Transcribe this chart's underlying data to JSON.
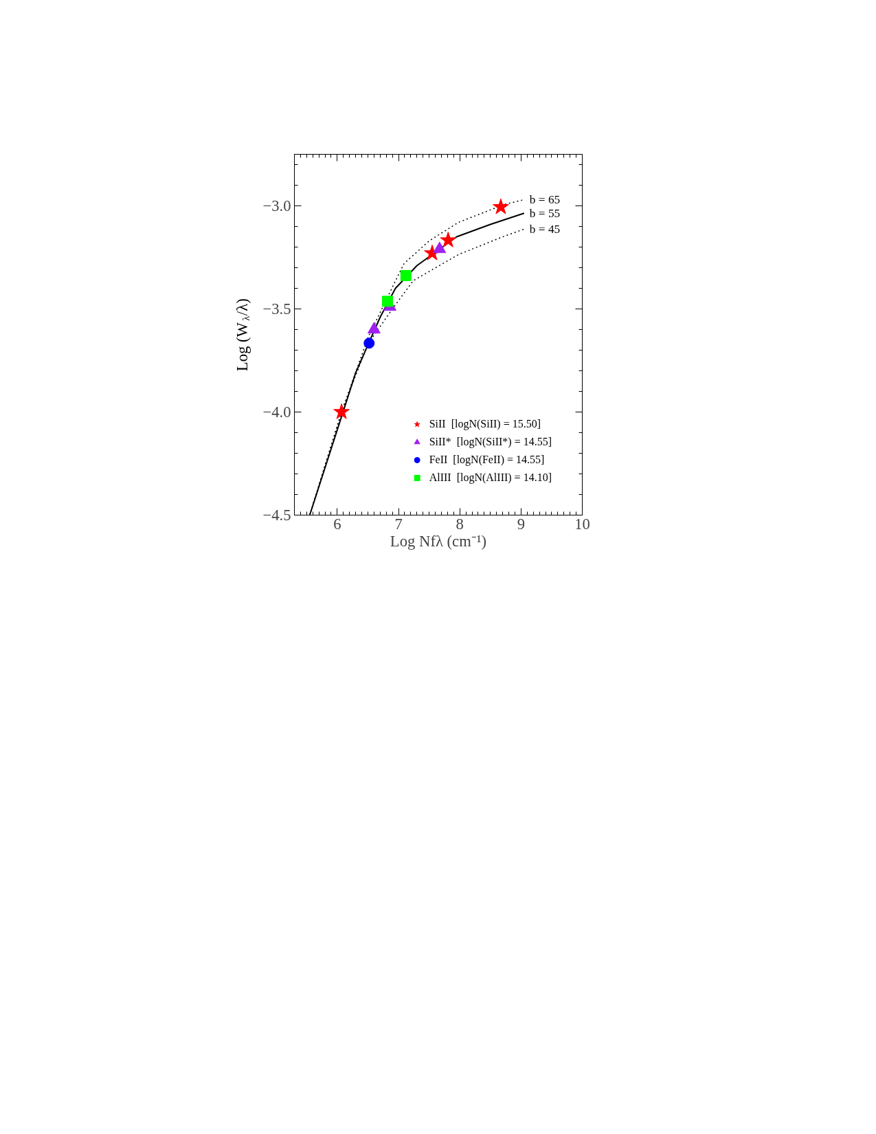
{
  "chart_data": {
    "type": "scatter",
    "xlabel": "Log Nfλ (cm⁻¹)",
    "ylabel": "Log (W$_{λ}$/λ)",
    "xlim": [
      5.3,
      10
    ],
    "ylim": [
      -4.5,
      -2.75
    ],
    "xticks": [
      6,
      7,
      8,
      9,
      10
    ],
    "yticks": [
      {
        "value": -4.5,
        "label": "−4.5"
      },
      {
        "value": -4.0,
        "label": "−4.0"
      },
      {
        "value": -3.5,
        "label": "−3.5"
      },
      {
        "value": -3.0,
        "label": "−3.0"
      }
    ],
    "grid": false,
    "legend": "bottom right",
    "series": [
      {
        "name": "b = 65",
        "type": "line",
        "line_style": "dotted",
        "color": "#000000",
        "x": [
          5.55,
          6.07,
          6.5,
          6.94,
          7.09,
          7.5,
          7.98,
          8.73,
          9.05
        ],
        "values": [
          -4.5,
          -4.0,
          -3.64,
          -3.37,
          -3.28,
          -3.17,
          -3.08,
          -2.993,
          -2.97
        ]
      },
      {
        "name": "b = 55",
        "type": "line",
        "line_style": "solid",
        "color": "#000000",
        "x": [
          5.55,
          6.3,
          6.7,
          6.95,
          7.3,
          7.95,
          8.5,
          9.05
        ],
        "values": [
          -4.5,
          -3.81,
          -3.54,
          -3.4,
          -3.29,
          -3.15,
          -3.09,
          -3.036
        ]
      },
      {
        "name": "b = 45",
        "type": "line",
        "line_style": "dotted",
        "color": "#000000",
        "x": [
          5.55,
          6.07,
          6.5,
          6.9,
          7.24,
          7.98,
          8.73,
          9.05
        ],
        "values": [
          -4.5,
          -4.0,
          -3.67,
          -3.5,
          -3.363,
          -3.236,
          -3.147,
          -3.113
        ]
      },
      {
        "name": "SiII  [logN(SiII) = 15.50]",
        "marker": "star",
        "color": "#ff0000",
        "x": [
          6.07,
          7.55,
          7.81,
          8.67
        ],
        "values": [
          -4.0,
          -3.23,
          -3.167,
          -3.006
        ]
      },
      {
        "name": "SiII*  [logN(SiII*) = 14.55]",
        "marker": "triangle",
        "color": "#a020f0",
        "x": [
          6.6,
          6.86,
          7.67
        ],
        "values": [
          -3.6,
          -3.49,
          -3.21
        ]
      },
      {
        "name": "FeII  [logN(FeII) = 14.55]",
        "marker": "circle",
        "color": "#0000ff",
        "x": [
          6.52
        ],
        "values": [
          -3.666
        ]
      },
      {
        "name": "AlIII  [logN(AlIII) = 14.10]",
        "marker": "square",
        "color": "#00ff00",
        "x": [
          6.82,
          7.12
        ],
        "values": [
          -3.463,
          -3.338
        ]
      }
    ]
  }
}
